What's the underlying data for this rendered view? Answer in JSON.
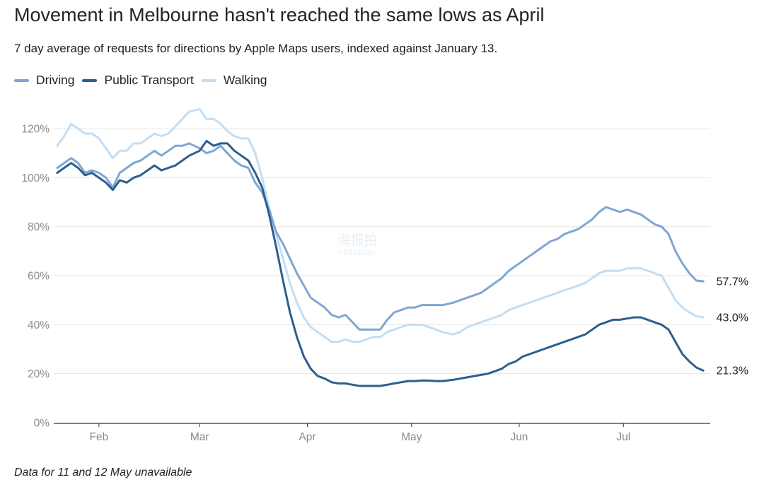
{
  "title": "Movement in Melbourne hasn't reached the same lows as April",
  "subtitle": "7 day average of requests for directions by Apple Maps users, indexed against January 13.",
  "footnote": "Data for 11 and 12 May unavailable",
  "watermark": {
    "text_cn": "海报拍",
    "text_en": "Hinabian"
  },
  "chart_data": {
    "type": "line",
    "x_unit": "date (2020)",
    "x_ticks": [
      {
        "date": "02-01",
        "label": "Feb"
      },
      {
        "date": "03-01",
        "label": "Mar"
      },
      {
        "date": "04-01",
        "label": "Apr"
      },
      {
        "date": "05-01",
        "label": "May"
      },
      {
        "date": "06-01",
        "label": "Jun"
      },
      {
        "date": "07-01",
        "label": "Jul"
      }
    ],
    "y_ticks": [
      {
        "value": 0,
        "label": "0%"
      },
      {
        "value": 20,
        "label": "20%"
      },
      {
        "value": 40,
        "label": "40%"
      },
      {
        "value": 60,
        "label": "60%"
      },
      {
        "value": 80,
        "label": "80%"
      },
      {
        "value": 100,
        "label": "100%"
      },
      {
        "value": 120,
        "label": "120%"
      }
    ],
    "ylim": [
      0,
      130
    ],
    "xlim": [
      "01-19",
      "07-26"
    ],
    "grid": true,
    "legend_position": "top-left",
    "series": [
      {
        "name": "Driving",
        "color": "#7fa6d4",
        "end_label": "57.7%",
        "points": [
          [
            "01-20",
            104
          ],
          [
            "01-22",
            106
          ],
          [
            "01-24",
            108
          ],
          [
            "01-26",
            106
          ],
          [
            "01-28",
            102
          ],
          [
            "01-30",
            103
          ],
          [
            "02-01",
            102
          ],
          [
            "02-03",
            100
          ],
          [
            "02-05",
            96
          ],
          [
            "02-07",
            102
          ],
          [
            "02-09",
            104
          ],
          [
            "02-11",
            106
          ],
          [
            "02-13",
            107
          ],
          [
            "02-15",
            109
          ],
          [
            "02-17",
            111
          ],
          [
            "02-19",
            109
          ],
          [
            "02-21",
            111
          ],
          [
            "02-23",
            113
          ],
          [
            "02-25",
            113
          ],
          [
            "02-27",
            114
          ],
          [
            "03-01",
            112
          ],
          [
            "03-03",
            110
          ],
          [
            "03-05",
            111
          ],
          [
            "03-07",
            113
          ],
          [
            "03-09",
            110
          ],
          [
            "03-11",
            107
          ],
          [
            "03-13",
            105
          ],
          [
            "03-15",
            104
          ],
          [
            "03-17",
            98
          ],
          [
            "03-19",
            94
          ],
          [
            "03-21",
            87
          ],
          [
            "03-23",
            78
          ],
          [
            "03-25",
            73
          ],
          [
            "03-27",
            67
          ],
          [
            "03-29",
            61
          ],
          [
            "03-31",
            56
          ],
          [
            "04-02",
            51
          ],
          [
            "04-04",
            49
          ],
          [
            "04-06",
            47
          ],
          [
            "04-08",
            44
          ],
          [
            "04-10",
            43
          ],
          [
            "04-12",
            44
          ],
          [
            "04-14",
            41
          ],
          [
            "04-16",
            38
          ],
          [
            "04-18",
            38
          ],
          [
            "04-20",
            38
          ],
          [
            "04-22",
            38
          ],
          [
            "04-24",
            42
          ],
          [
            "04-26",
            45
          ],
          [
            "04-28",
            46
          ],
          [
            "04-30",
            47
          ],
          [
            "05-02",
            47
          ],
          [
            "05-04",
            48
          ],
          [
            "05-06",
            48
          ],
          [
            "05-08",
            48
          ],
          [
            "05-10",
            48
          ],
          [
            "05-13",
            49
          ],
          [
            "05-15",
            50
          ],
          [
            "05-17",
            51
          ],
          [
            "05-19",
            52
          ],
          [
            "05-21",
            53
          ],
          [
            "05-23",
            55
          ],
          [
            "05-25",
            57
          ],
          [
            "05-27",
            59
          ],
          [
            "05-29",
            62
          ],
          [
            "05-31",
            64
          ],
          [
            "06-02",
            66
          ],
          [
            "06-04",
            68
          ],
          [
            "06-06",
            70
          ],
          [
            "06-08",
            72
          ],
          [
            "06-10",
            74
          ],
          [
            "06-12",
            75
          ],
          [
            "06-14",
            77
          ],
          [
            "06-16",
            78
          ],
          [
            "06-18",
            79
          ],
          [
            "06-20",
            81
          ],
          [
            "06-22",
            83
          ],
          [
            "06-24",
            86
          ],
          [
            "06-26",
            88
          ],
          [
            "06-28",
            87
          ],
          [
            "06-30",
            86
          ],
          [
            "07-02",
            87
          ],
          [
            "07-04",
            86
          ],
          [
            "07-06",
            85
          ],
          [
            "07-08",
            83
          ],
          [
            "07-10",
            81
          ],
          [
            "07-12",
            80
          ],
          [
            "07-14",
            77
          ],
          [
            "07-16",
            70
          ],
          [
            "07-18",
            65
          ],
          [
            "07-20",
            61
          ],
          [
            "07-22",
            58
          ],
          [
            "07-24",
            57.7
          ]
        ]
      },
      {
        "name": "Public Transport",
        "color": "#2d5f8e",
        "end_label": "21.3%",
        "points": [
          [
            "01-20",
            102
          ],
          [
            "01-22",
            104
          ],
          [
            "01-24",
            106
          ],
          [
            "01-26",
            104
          ],
          [
            "01-28",
            101
          ],
          [
            "01-30",
            102
          ],
          [
            "02-01",
            100
          ],
          [
            "02-03",
            98
          ],
          [
            "02-05",
            95
          ],
          [
            "02-07",
            99
          ],
          [
            "02-09",
            98
          ],
          [
            "02-11",
            100
          ],
          [
            "02-13",
            101
          ],
          [
            "02-15",
            103
          ],
          [
            "02-17",
            105
          ],
          [
            "02-19",
            103
          ],
          [
            "02-21",
            104
          ],
          [
            "02-23",
            105
          ],
          [
            "02-25",
            107
          ],
          [
            "02-27",
            109
          ],
          [
            "03-01",
            111
          ],
          [
            "03-03",
            115
          ],
          [
            "03-05",
            113
          ],
          [
            "03-07",
            114
          ],
          [
            "03-09",
            114
          ],
          [
            "03-11",
            111
          ],
          [
            "03-13",
            109
          ],
          [
            "03-15",
            107
          ],
          [
            "03-17",
            102
          ],
          [
            "03-19",
            96
          ],
          [
            "03-21",
            85
          ],
          [
            "03-23",
            72
          ],
          [
            "03-25",
            58
          ],
          [
            "03-27",
            45
          ],
          [
            "03-29",
            35
          ],
          [
            "03-31",
            27
          ],
          [
            "04-02",
            22
          ],
          [
            "04-04",
            19
          ],
          [
            "04-06",
            18
          ],
          [
            "04-08",
            16.5
          ],
          [
            "04-10",
            16
          ],
          [
            "04-12",
            16
          ],
          [
            "04-14",
            15.5
          ],
          [
            "04-16",
            15
          ],
          [
            "04-18",
            15
          ],
          [
            "04-20",
            15
          ],
          [
            "04-22",
            15
          ],
          [
            "04-24",
            15.5
          ],
          [
            "04-26",
            16
          ],
          [
            "04-28",
            16.5
          ],
          [
            "04-30",
            17
          ],
          [
            "05-02",
            17
          ],
          [
            "05-04",
            17.2
          ],
          [
            "05-06",
            17.2
          ],
          [
            "05-08",
            17
          ],
          [
            "05-10",
            17
          ],
          [
            "05-13",
            17.5
          ],
          [
            "05-15",
            18
          ],
          [
            "05-17",
            18.5
          ],
          [
            "05-19",
            19
          ],
          [
            "05-21",
            19.5
          ],
          [
            "05-23",
            20
          ],
          [
            "05-25",
            21
          ],
          [
            "05-27",
            22
          ],
          [
            "05-29",
            24
          ],
          [
            "05-31",
            25
          ],
          [
            "06-02",
            27
          ],
          [
            "06-04",
            28
          ],
          [
            "06-06",
            29
          ],
          [
            "06-08",
            30
          ],
          [
            "06-10",
            31
          ],
          [
            "06-12",
            32
          ],
          [
            "06-14",
            33
          ],
          [
            "06-16",
            34
          ],
          [
            "06-18",
            35
          ],
          [
            "06-20",
            36
          ],
          [
            "06-22",
            38
          ],
          [
            "06-24",
            40
          ],
          [
            "06-26",
            41
          ],
          [
            "06-28",
            42
          ],
          [
            "06-30",
            42
          ],
          [
            "07-02",
            42.5
          ],
          [
            "07-04",
            43
          ],
          [
            "07-06",
            43
          ],
          [
            "07-08",
            42
          ],
          [
            "07-10",
            41
          ],
          [
            "07-12",
            40
          ],
          [
            "07-14",
            38
          ],
          [
            "07-16",
            33
          ],
          [
            "07-18",
            28
          ],
          [
            "07-20",
            25
          ],
          [
            "07-22",
            22.5
          ],
          [
            "07-24",
            21.3
          ]
        ]
      },
      {
        "name": "Walking",
        "color": "#c2def4",
        "end_label": "43.0%",
        "points": [
          [
            "01-20",
            113
          ],
          [
            "01-22",
            117
          ],
          [
            "01-24",
            122
          ],
          [
            "01-26",
            120
          ],
          [
            "01-28",
            118
          ],
          [
            "01-30",
            118
          ],
          [
            "02-01",
            116
          ],
          [
            "02-03",
            112
          ],
          [
            "02-05",
            108
          ],
          [
            "02-07",
            111
          ],
          [
            "02-09",
            111
          ],
          [
            "02-11",
            114
          ],
          [
            "02-13",
            114
          ],
          [
            "02-15",
            116
          ],
          [
            "02-17",
            118
          ],
          [
            "02-19",
            117
          ],
          [
            "02-21",
            118
          ],
          [
            "02-23",
            121
          ],
          [
            "02-25",
            124
          ],
          [
            "02-27",
            127
          ],
          [
            "03-01",
            128
          ],
          [
            "03-03",
            124
          ],
          [
            "03-05",
            124
          ],
          [
            "03-07",
            122
          ],
          [
            "03-09",
            119
          ],
          [
            "03-11",
            117
          ],
          [
            "03-13",
            116
          ],
          [
            "03-15",
            116
          ],
          [
            "03-17",
            110
          ],
          [
            "03-19",
            100
          ],
          [
            "03-21",
            88
          ],
          [
            "03-23",
            77
          ],
          [
            "03-25",
            67
          ],
          [
            "03-27",
            57
          ],
          [
            "03-29",
            49
          ],
          [
            "03-31",
            43
          ],
          [
            "04-02",
            39
          ],
          [
            "04-04",
            37
          ],
          [
            "04-06",
            35
          ],
          [
            "04-08",
            33
          ],
          [
            "04-10",
            33
          ],
          [
            "04-12",
            34
          ],
          [
            "04-14",
            33
          ],
          [
            "04-16",
            33
          ],
          [
            "04-18",
            34
          ],
          [
            "04-20",
            35
          ],
          [
            "04-22",
            35
          ],
          [
            "04-24",
            37
          ],
          [
            "04-26",
            38
          ],
          [
            "04-28",
            39
          ],
          [
            "04-30",
            40
          ],
          [
            "05-02",
            40
          ],
          [
            "05-04",
            40
          ],
          [
            "05-06",
            39
          ],
          [
            "05-08",
            38
          ],
          [
            "05-10",
            37
          ],
          [
            "05-13",
            36
          ],
          [
            "05-15",
            37
          ],
          [
            "05-17",
            39
          ],
          [
            "05-19",
            40
          ],
          [
            "05-21",
            41
          ],
          [
            "05-23",
            42
          ],
          [
            "05-25",
            43
          ],
          [
            "05-27",
            44
          ],
          [
            "05-29",
            46
          ],
          [
            "05-31",
            47
          ],
          [
            "06-02",
            48
          ],
          [
            "06-04",
            49
          ],
          [
            "06-06",
            50
          ],
          [
            "06-08",
            51
          ],
          [
            "06-10",
            52
          ],
          [
            "06-12",
            53
          ],
          [
            "06-14",
            54
          ],
          [
            "06-16",
            55
          ],
          [
            "06-18",
            56
          ],
          [
            "06-20",
            57
          ],
          [
            "06-22",
            59
          ],
          [
            "06-24",
            61
          ],
          [
            "06-26",
            62
          ],
          [
            "06-28",
            62
          ],
          [
            "06-30",
            62
          ],
          [
            "07-02",
            63
          ],
          [
            "07-04",
            63
          ],
          [
            "07-06",
            63
          ],
          [
            "07-08",
            62
          ],
          [
            "07-10",
            61
          ],
          [
            "07-12",
            60
          ],
          [
            "07-14",
            55
          ],
          [
            "07-16",
            50
          ],
          [
            "07-18",
            47
          ],
          [
            "07-20",
            45
          ],
          [
            "07-22",
            43.5
          ],
          [
            "07-24",
            43
          ]
        ]
      }
    ]
  }
}
